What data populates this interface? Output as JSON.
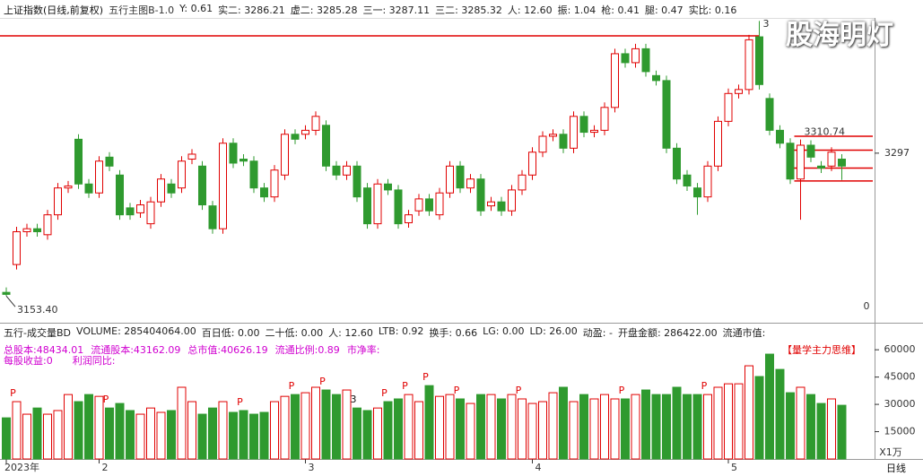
{
  "chart_data": [
    {
      "type": "candlestick",
      "title": "上证指数(日线,前复权)",
      "indicator": "五行主图B-1.0",
      "info": [
        "Y: 0.61",
        "实二: 3286.21",
        "虚二: 3285.28",
        "三一: 3287.11",
        "三二: 3285.32",
        "人: 12.60",
        "振: 1.04",
        "枪: 0.41",
        "腿: 0.47",
        "实比: 0.16"
      ],
      "categories": [
        "2023年",
        null,
        null,
        null,
        null,
        null,
        null,
        null,
        null,
        "2",
        null,
        null,
        null,
        null,
        null,
        null,
        null,
        null,
        null,
        null,
        null,
        null,
        null,
        null,
        null,
        null,
        null,
        null,
        null,
        "3",
        null,
        null,
        null,
        null,
        null,
        null,
        null,
        null,
        null,
        null,
        null,
        null,
        null,
        null,
        null,
        null,
        null,
        null,
        null,
        null,
        null,
        "4",
        null,
        null,
        null,
        null,
        null,
        null,
        null,
        null,
        null,
        null,
        null,
        null,
        null,
        null,
        null,
        null,
        null,
        null,
        "5",
        null,
        null,
        null,
        null,
        null,
        null,
        null,
        null,
        null,
        null,
        null
      ],
      "open": [
        3157,
        3185,
        3218,
        3221,
        3215,
        3235,
        3262,
        3311,
        3266,
        3257,
        3293,
        3275,
        3242,
        3237,
        3226,
        3248,
        3266,
        3262,
        3291,
        3284,
        3244,
        3221,
        3307,
        3291,
        3289,
        3262,
        3253,
        3275,
        3316,
        3316,
        3320,
        3325,
        3284,
        3275,
        3284,
        3262,
        3226,
        3266,
        3260,
        3227,
        3239,
        3251,
        3235,
        3257,
        3284,
        3262,
        3271,
        3244,
        3248,
        3239,
        3260,
        3275,
        3298,
        3314,
        3316,
        3302,
        3334,
        3318,
        3320,
        3343,
        3397,
        3388,
        3402,
        3375,
        3370,
        3302,
        3275,
        3262,
        3253,
        3284,
        3329,
        3357,
        3361,
        3414,
        3352,
        3320,
        3307,
        3271,
        3305,
        3284,
        3284,
        3291
      ],
      "high": [
        3162,
        3223,
        3226,
        3226,
        3240,
        3267,
        3269,
        3316,
        3271,
        3294,
        3298,
        3280,
        3247,
        3250,
        3253,
        3276,
        3271,
        3294,
        3301,
        3289,
        3249,
        3312,
        3312,
        3296,
        3294,
        3267,
        3285,
        3321,
        3321,
        3325,
        3339,
        3330,
        3289,
        3289,
        3289,
        3267,
        3271,
        3271,
        3265,
        3240,
        3256,
        3256,
        3262,
        3289,
        3289,
        3276,
        3276,
        3253,
        3253,
        3265,
        3280,
        3303,
        3319,
        3321,
        3321,
        3339,
        3339,
        3325,
        3348,
        3402,
        3402,
        3407,
        3407,
        3380,
        3375,
        3307,
        3280,
        3267,
        3289,
        3334,
        3362,
        3366,
        3416,
        3430,
        3357,
        3325,
        3312,
        3310.74,
        3310,
        3289,
        3303,
        3296
      ],
      "low": [
        3153.4,
        3180,
        3213,
        3213,
        3210,
        3230,
        3257,
        3261,
        3252,
        3252,
        3279,
        3230,
        3230,
        3232,
        3221,
        3243,
        3252,
        3257,
        3286,
        3240,
        3216,
        3216,
        3282,
        3284,
        3257,
        3248,
        3248,
        3270,
        3306,
        3311,
        3315,
        3279,
        3270,
        3270,
        3248,
        3221,
        3221,
        3255,
        3221,
        3222,
        3234,
        3234,
        3230,
        3252,
        3257,
        3257,
        3234,
        3239,
        3234,
        3234,
        3255,
        3270,
        3293,
        3309,
        3297,
        3297,
        3313,
        3313,
        3315,
        3338,
        3383,
        3383,
        3374,
        3365,
        3297,
        3266,
        3259,
        3235,
        3248,
        3279,
        3324,
        3352,
        3356,
        3361,
        3315,
        3302,
        3266,
        3230,
        3288,
        3277,
        3279,
        3270
      ],
      "close": [
        3155,
        3218,
        3221,
        3218,
        3235,
        3262,
        3264,
        3266,
        3257,
        3289,
        3284,
        3235,
        3235,
        3245,
        3248,
        3271,
        3257,
        3289,
        3296,
        3245,
        3221,
        3307,
        3287,
        3289,
        3262,
        3253,
        3280,
        3316,
        3311,
        3320,
        3334,
        3284,
        3275,
        3284,
        3253,
        3226,
        3266,
        3260,
        3226,
        3235,
        3251,
        3239,
        3257,
        3284,
        3262,
        3271,
        3239,
        3248,
        3239,
        3260,
        3275,
        3298,
        3314,
        3316,
        3302,
        3334,
        3318,
        3320,
        3343,
        3397,
        3388,
        3402,
        3379,
        3370,
        3302,
        3271,
        3264,
        3253,
        3284,
        3329,
        3357,
        3361,
        3411,
        3366,
        3320,
        3307,
        3271,
        3305,
        3293,
        3282,
        3298,
        3284
      ],
      "ylim": [
        3131,
        3433
      ],
      "yticks": [
        3297
      ],
      "up_color": "#e00000",
      "down_color": "#2f9a2f",
      "hlines": [
        {
          "value": 3415,
          "from": 0,
          "to": 73
        },
        {
          "value": 3314,
          "from": 77,
          "to": 84
        },
        {
          "value": 3300,
          "from": 77,
          "to": 84
        },
        {
          "value": 3282,
          "from": 77,
          "to": 84
        },
        {
          "value": 3269,
          "from": 77,
          "to": 84
        }
      ],
      "annotations": [
        {
          "label": "3153.40",
          "at": 0,
          "anchor": "low"
        },
        {
          "label": "3310.74",
          "at": 77,
          "anchor": "high"
        },
        {
          "label": "3",
          "at": 73,
          "anchor": "high"
        }
      ],
      "side_label": "0"
    },
    {
      "type": "bar",
      "title": "五行-成交量BD",
      "info": [
        "VOLUME: 285404064.00",
        "百日低: 0.00",
        "二十低: 0.00",
        "人: 12.60",
        "LTB: 0.92",
        "换手: 0.66",
        "LG: 0.00",
        "LD: 26.00",
        "动盈: -",
        "开盘金额: 286422.00",
        "流通市值:"
      ],
      "info2": [
        "总股本:48434.01",
        "流通股本:43162.09",
        "总市值:40626.19",
        "流通比例:0.89",
        "市净率:"
      ],
      "info3": [
        "每股收益:0",
        "利润同比:"
      ],
      "badge": "【量学主力思维】",
      "values": [
        22600,
        31500,
        24600,
        28000,
        24600,
        26600,
        35400,
        31500,
        35400,
        34400,
        28000,
        30500,
        26600,
        24600,
        28000,
        25600,
        26600,
        39400,
        31500,
        24600,
        28000,
        31500,
        25600,
        26600,
        24600,
        25600,
        31500,
        34400,
        35400,
        36400,
        39400,
        37900,
        35400,
        37900,
        28000,
        26600,
        28000,
        31500,
        33000,
        35400,
        31500,
        40300,
        34400,
        35400,
        33000,
        30500,
        35400,
        35400,
        33000,
        35400,
        33000,
        30500,
        31500,
        36400,
        39400,
        31500,
        35400,
        33000,
        35400,
        33000,
        33000,
        35400,
        37900,
        35400,
        35400,
        39400,
        35400,
        35400,
        35400,
        39400,
        41300,
        41300,
        51200,
        45300,
        57600,
        49200,
        36400,
        39400,
        35400,
        30500,
        33000,
        29500
      ],
      "ylim": [
        0,
        66000
      ],
      "yticks": [
        15000,
        30000,
        45000,
        60000
      ],
      "unit_label": "X1万",
      "markers": [
        {
          "label": "P",
          "at": 1
        },
        {
          "label": "P",
          "at": 10
        },
        {
          "label": "P",
          "at": 23
        },
        {
          "label": "P",
          "at": 28
        },
        {
          "label": "P",
          "at": 31
        },
        {
          "label": "3",
          "at": 34
        },
        {
          "label": "P",
          "at": 37
        },
        {
          "label": "P",
          "at": 39
        },
        {
          "label": "P",
          "at": 41
        },
        {
          "label": "P",
          "at": 44
        },
        {
          "label": "P",
          "at": 50
        },
        {
          "label": "P",
          "at": 60
        },
        {
          "label": "P",
          "at": 68
        }
      ]
    }
  ],
  "ui": {
    "watermark": "股海明灯",
    "period": "日线"
  }
}
